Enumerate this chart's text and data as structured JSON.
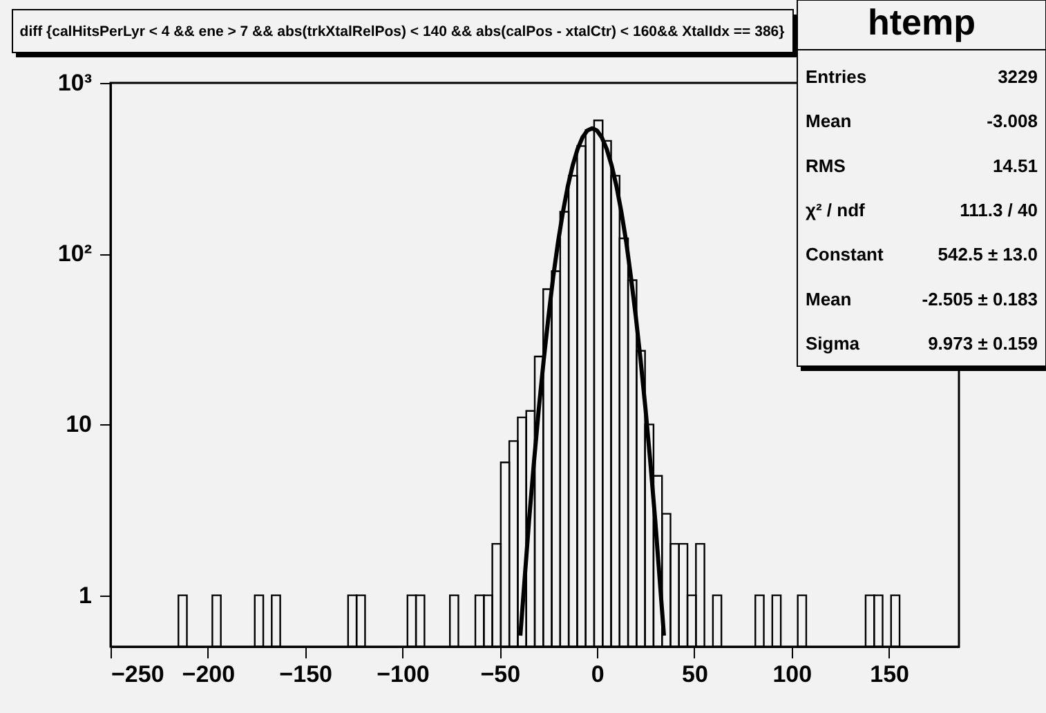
{
  "chart_data": {
    "type": "histogram",
    "title": "diff {calHitsPerLyr < 4 && ene > 7 && abs(trkXtalRelPos) < 140 && abs(calPos - xtalCtr) < 160&& XtalIdx == 386}",
    "bins": [
      -250,
      -245.64,
      -241.28,
      -236.92,
      -232.56,
      -228.2,
      -223.84,
      -219.48,
      -215.12,
      -210.76,
      -206.4,
      -202.04,
      -197.68,
      -193.32,
      -188.96,
      -184.6,
      -180.24,
      -175.88,
      -171.52,
      -167.16,
      -162.8,
      -158.44,
      -154.08,
      -149.72,
      -145.36,
      -141,
      -136.64,
      -132.28,
      -127.92,
      -123.56,
      -119.2,
      -114.84,
      -110.48,
      -106.12,
      -101.76,
      -97.4,
      -93.04,
      -88.68,
      -84.32,
      -79.96,
      -75.6,
      -71.24,
      -66.88,
      -62.52,
      -58.16,
      -53.8,
      -49.44,
      -45.08,
      -40.72,
      -36.36,
      -32,
      -27.64,
      -23.28,
      -18.92,
      -14.56,
      -10.2,
      -5.84,
      -1.48,
      2.88,
      7.24,
      11.6,
      15.96,
      20.32,
      24.68,
      29.04,
      33.4,
      37.76,
      42.12,
      46.48,
      50.84,
      55.2,
      59.56,
      63.92,
      68.28,
      72.64,
      77,
      81.36,
      85.72,
      90.08,
      94.44,
      98.8,
      103.16,
      107.52,
      111.88,
      116.24,
      120.6,
      124.96,
      129.32,
      133.68,
      138.04,
      142.4,
      146.76,
      151.12,
      155.48,
      159.84,
      164.2,
      168.56,
      172.92,
      177.28,
      181.64,
      186
    ],
    "values": [
      null,
      null,
      null,
      null,
      null,
      null,
      null,
      null,
      1,
      null,
      null,
      null,
      1,
      null,
      null,
      null,
      null,
      1,
      null,
      1,
      null,
      null,
      null,
      null,
      null,
      null,
      null,
      null,
      1,
      1,
      null,
      null,
      null,
      null,
      null,
      1,
      1,
      null,
      null,
      null,
      1,
      null,
      null,
      1,
      1,
      2,
      6,
      8,
      11,
      12,
      25,
      62,
      79,
      176,
      286,
      427,
      530,
      603,
      458,
      286,
      123,
      70,
      27,
      10,
      5,
      3,
      2,
      2,
      1,
      2,
      null,
      1,
      null,
      null,
      null,
      null,
      1,
      null,
      1,
      null,
      null,
      1,
      null,
      null,
      null,
      null,
      null,
      null,
      null,
      1,
      1,
      null,
      1,
      null,
      null,
      null,
      null,
      null,
      null,
      null
    ],
    "color": "#000000",
    "series": [
      {
        "type": "line",
        "color": "#000000",
        "x": [
          -39.4,
          -34.9,
          -32.4,
          -29.9,
          -27.4,
          -24.9,
          -22.5,
          -20.0,
          -17.5,
          -15.0,
          -12.5,
          -10.0,
          -7.5,
          -5.0,
          -2.5,
          0.0,
          2.5,
          5.0,
          7.5,
          10.0,
          12.5,
          15.0,
          17.4,
          19.9,
          22.4,
          24.9,
          27.4,
          29.9,
          34.4
        ],
        "values": [
          0.58,
          2.76,
          6.03,
          12.4,
          23.8,
          43.2,
          73.4,
          117.4,
          176.1,
          248.4,
          329.0,
          409.5,
          478.8,
          525.8,
          542.5,
          525.8,
          478.8,
          409.5,
          329.0,
          248.4,
          176.1,
          117.4,
          73.4,
          43.2,
          23.8,
          12.4,
          6.03,
          2.76,
          0.58
        ]
      }
    ],
    "xlim": [
      -250,
      186
    ],
    "xticks": [
      -250,
      -200,
      -150,
      -100,
      -50,
      0,
      50,
      100,
      150
    ],
    "ylim": [
      0.5,
      1000
    ],
    "log": true,
    "yticks": [
      1,
      10,
      {
        "value": 100,
        "label": "10²"
      },
      {
        "value": 1000,
        "label": "10³"
      }
    ],
    "grid": false,
    "annotations": [
      "htemp",
      "Entries",
      "3229",
      "Mean",
      "-3.008",
      "RMS",
      "14.51",
      "χ² / ndf",
      "111.3 / 40",
      "Constant",
      "542.5 ± 13.0",
      "Mean",
      "-2.505 ± 0.183",
      "Sigma",
      "9.973 ± 0.159"
    ]
  }
}
